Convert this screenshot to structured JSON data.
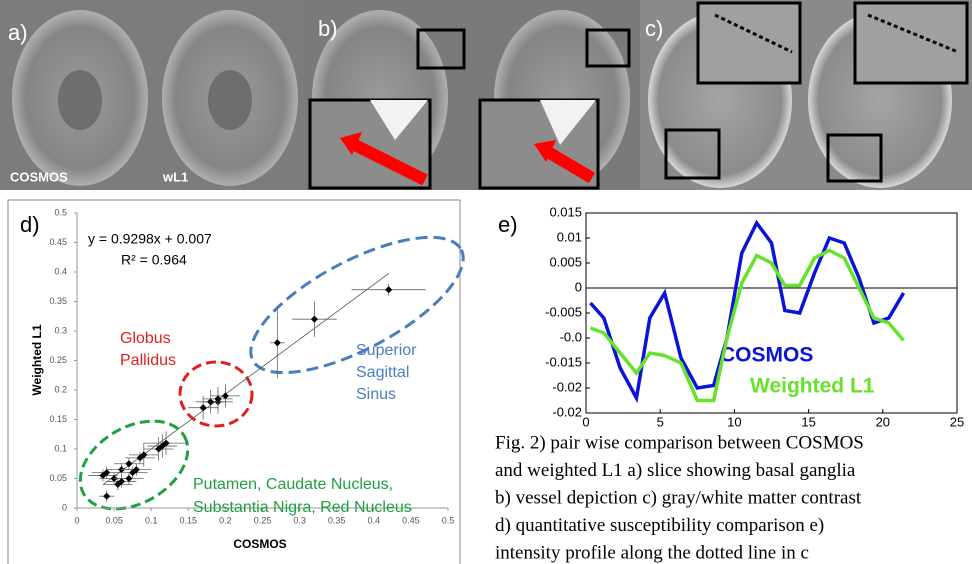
{
  "panels": {
    "a": "a)",
    "b": "b)",
    "c": "c)",
    "a_left": "COSMOS",
    "a_right": "wL1"
  },
  "chart_data": [
    {
      "type": "scatter",
      "panel": "d)",
      "xlabel": "COSMOS",
      "ylabel": "Weighted L1",
      "xlim": [
        0,
        0.5
      ],
      "ylim": [
        0,
        0.5
      ],
      "xticks": [
        0,
        0.05,
        0.1,
        0.15,
        0.2,
        0.25,
        0.3,
        0.35,
        0.4,
        0.45,
        0.5
      ],
      "yticks": [
        0,
        0.05,
        0.1,
        0.15,
        0.2,
        0.25,
        0.3,
        0.35,
        0.4,
        0.45,
        0.5
      ],
      "x": [
        0.42,
        0.32,
        0.27,
        0.2,
        0.19,
        0.18,
        0.17,
        0.19,
        0.12,
        0.115,
        0.11,
        0.09,
        0.085,
        0.07,
        0.06,
        0.04,
        0.035,
        0.05,
        0.06,
        0.07,
        0.04,
        0.055,
        0.075,
        0.08
      ],
      "y": [
        0.37,
        0.32,
        0.28,
        0.19,
        0.18,
        0.18,
        0.17,
        0.185,
        0.11,
        0.105,
        0.1,
        0.09,
        0.085,
        0.075,
        0.065,
        0.06,
        0.055,
        0.05,
        0.045,
        0.05,
        0.02,
        0.04,
        0.06,
        0.065
      ],
      "x_err": [
        0.05,
        0.03,
        0.01,
        0.02,
        0.02,
        0.02,
        0.02,
        0.02,
        0.03,
        0.02,
        0.02,
        0.02,
        0.02,
        0.02,
        0.02,
        0.02,
        0.02,
        0.02,
        0.02,
        0.02,
        0.01,
        0.02,
        0.02,
        0.02
      ],
      "y_err": [
        0.01,
        0.03,
        0.06,
        0.02,
        0.02,
        0.02,
        0.02,
        0.02,
        0.02,
        0.02,
        0.02,
        0.02,
        0.01,
        0.01,
        0.01,
        0.01,
        0.01,
        0.01,
        0.01,
        0.01,
        0.01,
        0.01,
        0.01,
        0.01
      ],
      "color": "#000000",
      "trendline": {
        "label": "y = 0.9298x + 0.007",
        "slope": 0.9298,
        "intercept": 0.007,
        "r2_label": "R² = 0.964"
      },
      "annotations": {
        "globus": [
          "Globus",
          "Pallidus"
        ],
        "sinus": [
          "Superior",
          "Sagittal",
          "Sinus"
        ],
        "nuclei": [
          "Putamen, Caudate Nucleus,",
          "Substantia Nigra, Red Nucleus"
        ]
      }
    },
    {
      "type": "line",
      "panel": "e)",
      "xlim": [
        0,
        25
      ],
      "ylim": [
        -0.025,
        0.015
      ],
      "xticks": [
        0,
        5,
        10,
        15,
        20,
        25
      ],
      "yticks": [
        0.015,
        0.01,
        0.005,
        0,
        -0.005,
        {
          "value": -0.01,
          "label": "-0.0"
        },
        -0.015,
        -0.02,
        {
          "value": -0.025,
          "label": "-0.02"
        }
      ],
      "x": [
        0.3,
        1.2,
        2.3,
        3.4,
        4.3,
        5.3,
        6.4,
        7.5,
        8.6,
        9.5,
        10.5,
        11.5,
        12.5,
        13.4,
        14.4,
        15.4,
        16.4,
        17.4,
        18.4,
        19.4,
        20.4,
        21.4
      ],
      "series": [
        {
          "name": "COSMOS",
          "color": "#0a14d8",
          "values": [
            -0.003,
            -0.006,
            -0.016,
            -0.022,
            -0.006,
            -0.001,
            -0.014,
            -0.02,
            -0.0195,
            -0.01,
            0.007,
            0.013,
            0.009,
            -0.0045,
            -0.005,
            0.003,
            0.01,
            0.009,
            0.002,
            -0.007,
            -0.006,
            -0.001
          ]
        },
        {
          "name": "Weighted L1",
          "color": "#66e22a",
          "values": [
            -0.008,
            -0.009,
            -0.013,
            -0.017,
            -0.013,
            -0.0135,
            -0.015,
            -0.0225,
            -0.0225,
            -0.01,
            0.001,
            0.0065,
            0.005,
            0.0005,
            0.0005,
            0.006,
            0.0075,
            0.006,
            0,
            -0.006,
            -0.007,
            -0.0105
          ]
        }
      ]
    }
  ],
  "caption": [
    "Fig. 2) pair wise comparison between COSMOS",
    "and weighted L1  a) slice showing basal ganglia",
    "b) vessel depiction c) gray/white matter contrast",
    "d) quantitative susceptibility comparison e)",
    "intensity profile along the dotted line in c"
  ]
}
